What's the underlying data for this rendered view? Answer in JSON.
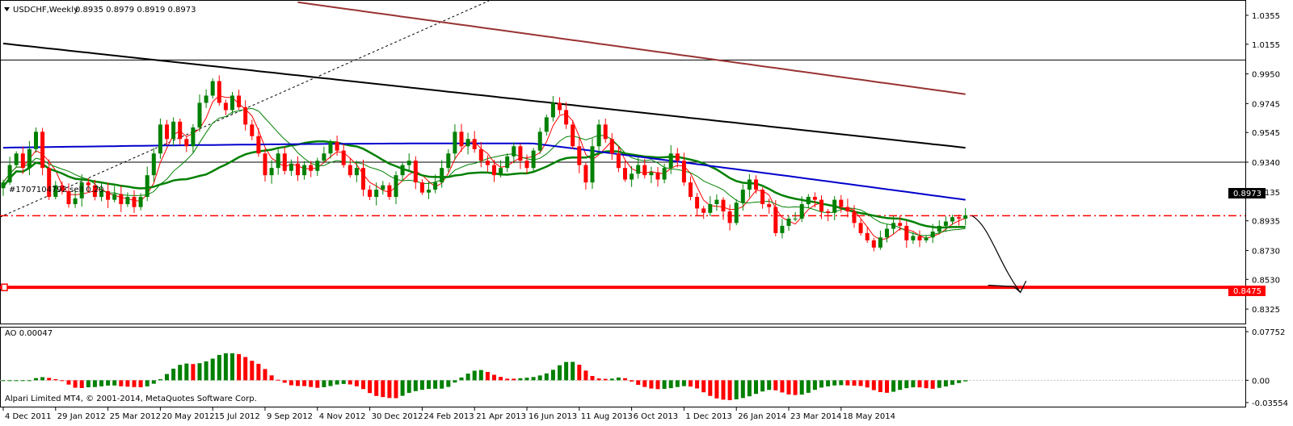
{
  "header": {
    "symbol": "USDCHF,Weekly",
    "ohlc": "0.8935 0.8979 0.8919 0.8973"
  },
  "footer": {
    "copyright": "Alpari Limited MT4, © 2001-2014, MetaQuotes Software Corp."
  },
  "order_label": "#1707104792 sell 0.20",
  "colors": {
    "bull": "#008000",
    "bear": "#ff0000",
    "ma_blue": "#0000cc",
    "ma_black": "#000000",
    "ma_brown": "#993333",
    "ma_green": "#008000",
    "price_line": "#ff0000"
  },
  "chart_data": [
    {
      "type": "candlestick",
      "title": "USDCHF,Weekly",
      "ylim": [
        0.8225,
        1.0455
      ],
      "y_ticks": [
        "1.0355",
        "1.0155",
        "0.9950",
        "0.9745",
        "0.9545",
        "0.9340",
        "0.9135",
        "0.8935",
        "0.8730",
        "0.8530",
        "0.8325"
      ],
      "x_ticks": [
        "4 Dec 2011",
        "29 Jan 2012",
        "25 Mar 2012",
        "20 May 2012",
        "15 Jul 2012",
        "9 Sep 2012",
        "4 Nov 2012",
        "30 Dec 2012",
        "24 Feb 2013",
        "21 Apr 2013",
        "16 Jun 2013",
        "11 Aug 2013",
        "6 Oct 2013",
        "1 Dec 2013",
        "26 Jan 2014",
        "23 Mar 2014",
        "18 May 2014"
      ],
      "current_price": "0.8973",
      "support_level": "0.8475",
      "horizontal_lines": [
        1.0046,
        0.934
      ],
      "order_level": 0.897,
      "closes": [
        0.92,
        0.932,
        0.94,
        0.93,
        0.943,
        0.955,
        0.93,
        0.91,
        0.918,
        0.914,
        0.905,
        0.909,
        0.92,
        0.918,
        0.91,
        0.914,
        0.908,
        0.912,
        0.905,
        0.91,
        0.903,
        0.91,
        0.925,
        0.94,
        0.96,
        0.95,
        0.962,
        0.95,
        0.945,
        0.958,
        0.975,
        0.98,
        0.99,
        0.975,
        0.97,
        0.98,
        0.972,
        0.96,
        0.952,
        0.94,
        0.925,
        0.93,
        0.94,
        0.928,
        0.933,
        0.925,
        0.932,
        0.928,
        0.935,
        0.94,
        0.948,
        0.942,
        0.932,
        0.925,
        0.93,
        0.915,
        0.91,
        0.915,
        0.918,
        0.91,
        0.925,
        0.932,
        0.935,
        0.92,
        0.913,
        0.915,
        0.92,
        0.93,
        0.94,
        0.955,
        0.945,
        0.95,
        0.943,
        0.935,
        0.932,
        0.925,
        0.93,
        0.938,
        0.945,
        0.935,
        0.93,
        0.942,
        0.955,
        0.965,
        0.975,
        0.97,
        0.96,
        0.945,
        0.932,
        0.92,
        0.945,
        0.96,
        0.95,
        0.94,
        0.93,
        0.922,
        0.926,
        0.932,
        0.925,
        0.927,
        0.922,
        0.93,
        0.94,
        0.935,
        0.92,
        0.91,
        0.902,
        0.899,
        0.905,
        0.908,
        0.9,
        0.892,
        0.906,
        0.915,
        0.922,
        0.915,
        0.905,
        0.903,
        0.885,
        0.89,
        0.895,
        0.895,
        0.905,
        0.91,
        0.908,
        0.9,
        0.899,
        0.908,
        0.903,
        0.9,
        0.892,
        0.885,
        0.88,
        0.875,
        0.882,
        0.888,
        0.892,
        0.89,
        0.88,
        0.883,
        0.88,
        0.882,
        0.886,
        0.89,
        0.893,
        0.896,
        0.895,
        0.8973
      ]
    },
    {
      "type": "bar",
      "title": "AO 0.00047",
      "ylim": [
        -0.042,
        0.084
      ],
      "y_ticks": [
        "0.07752",
        "0.00",
        "-0.03554"
      ]
    }
  ]
}
